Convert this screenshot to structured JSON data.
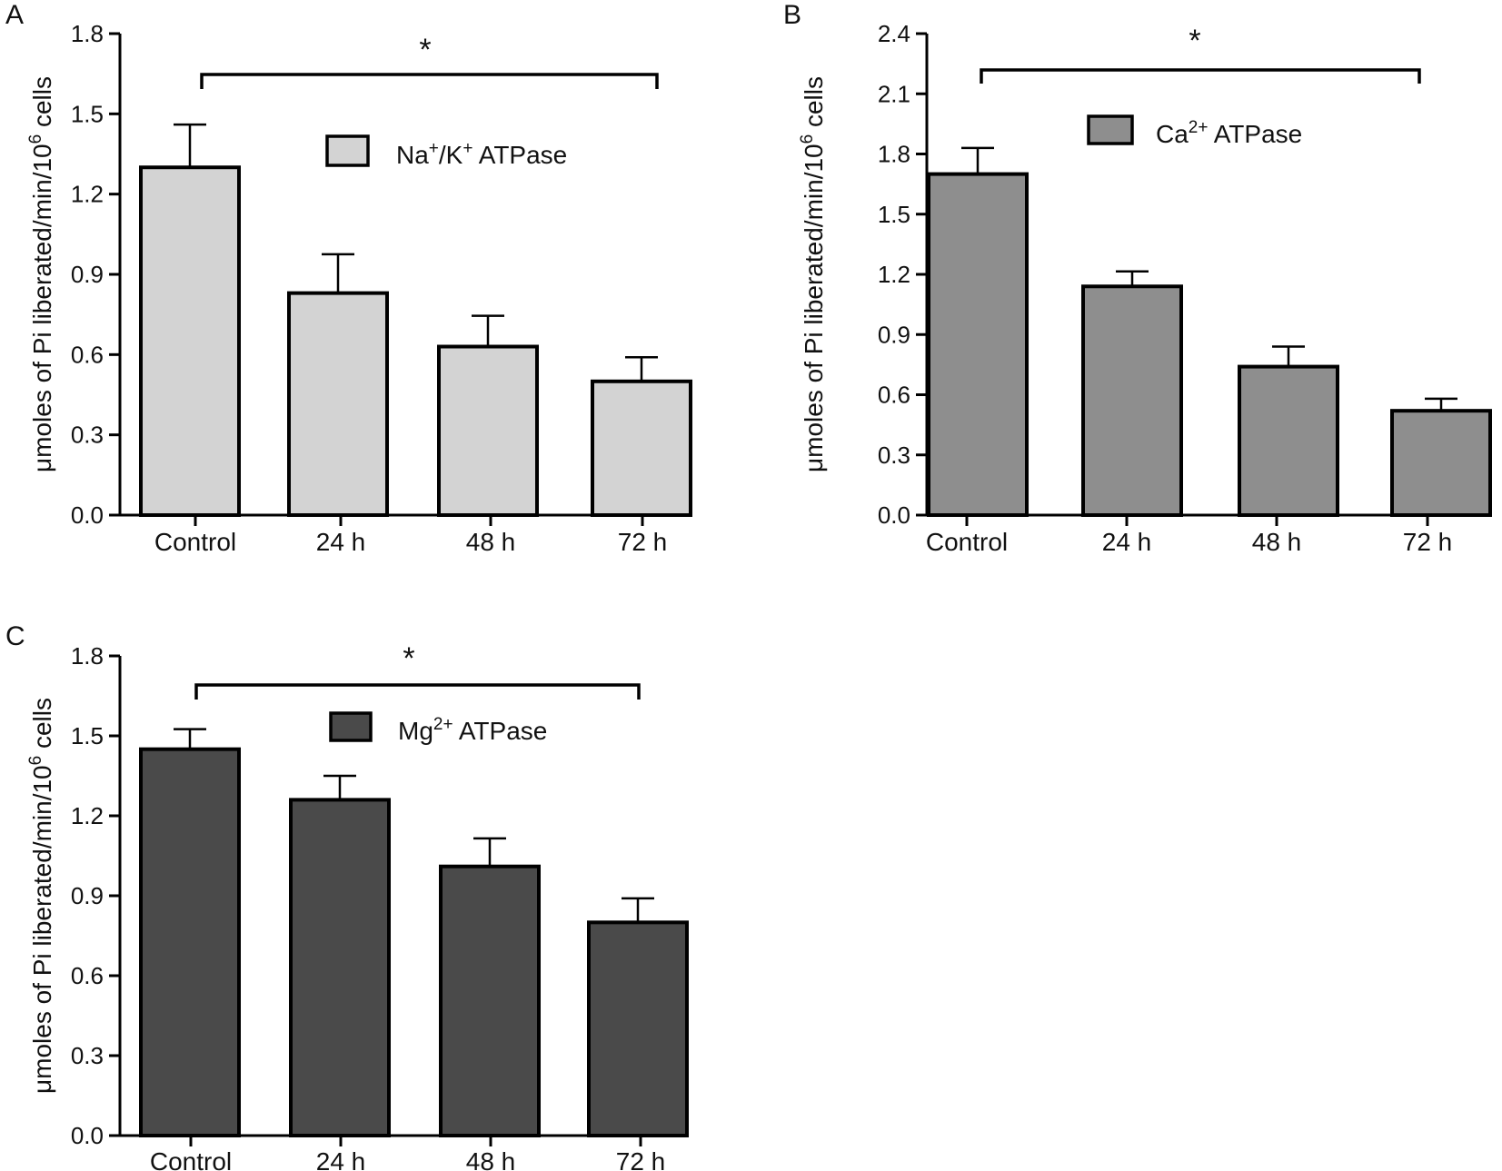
{
  "chart_data": [
    {
      "type": "bar",
      "panel": "A",
      "categories": [
        "Control",
        "24 h",
        "48 h",
        "72 h"
      ],
      "values": [
        1.3,
        0.83,
        0.63,
        0.5
      ],
      "errors": [
        0.16,
        0.145,
        0.115,
        0.09
      ],
      "ylim": [
        0,
        1.8
      ],
      "yticks": [
        "0.0",
        "0.3",
        "0.6",
        "0.9",
        "1.2",
        "1.5",
        "1.8"
      ],
      "ylabel": "μmoles of Pi liberated/min/10",
      "ylabel_sup": "6",
      "ylabel_tail": " cells",
      "legend": {
        "pre": "Na",
        "sup1": "+",
        "mid": "/K",
        "sup2": "+",
        "post": " ATPase",
        "placement": "top-center"
      },
      "significance": "*",
      "bar_color": "#d3d3d3"
    },
    {
      "type": "bar",
      "panel": "B",
      "categories": [
        "Control",
        "24 h",
        "48 h",
        "72 h"
      ],
      "values": [
        1.7,
        1.14,
        0.74,
        0.52
      ],
      "errors": [
        0.13,
        0.075,
        0.1,
        0.06
      ],
      "ylim": [
        0,
        2.4
      ],
      "yticks": [
        "0.0",
        "0.3",
        "0.6",
        "0.9",
        "1.2",
        "1.5",
        "1.8",
        "2.1",
        "2.4"
      ],
      "ylabel": "μmoles of Pi liberated/min/10",
      "ylabel_sup": "6",
      "ylabel_tail": " cells",
      "legend": {
        "pre": "Ca",
        "sup1": "2+",
        "mid": "",
        "sup2": "",
        "post": " ATPase",
        "placement": "top-center"
      },
      "significance": "*",
      "bar_color": "#8e8e8e"
    },
    {
      "type": "bar",
      "panel": "C",
      "categories": [
        "Control",
        "24 h",
        "48 h",
        "72 h"
      ],
      "values": [
        1.45,
        1.26,
        1.01,
        0.8
      ],
      "errors": [
        0.075,
        0.09,
        0.105,
        0.09
      ],
      "ylim": [
        0,
        1.8
      ],
      "yticks": [
        "0.0",
        "0.3",
        "0.6",
        "0.9",
        "1.2",
        "1.5",
        "1.8"
      ],
      "ylabel": "μmoles of Pi liberated/min/10",
      "ylabel_sup": "6",
      "ylabel_tail": " cells",
      "legend": {
        "pre": "Mg",
        "sup1": "2+",
        "mid": "",
        "sup2": "",
        "post": " ATPase",
        "placement": "top-center"
      },
      "significance": "*",
      "bar_color": "#4a4a4a"
    }
  ]
}
